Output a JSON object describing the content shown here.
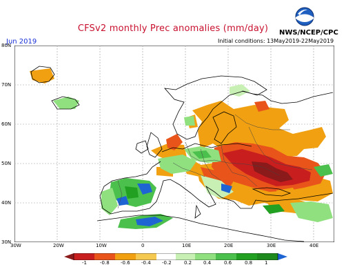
{
  "header": {
    "title": "CFSv2 monthly Prec anomalies (mm/day)",
    "month": "Jun 2019",
    "agency": "NWS/NCEP/CPC",
    "initial_conditions": "Initial conditions: 13May2019-22May2019",
    "logo_text": "NOAA"
  },
  "axes": {
    "lat_labels": [
      "80N",
      "70N",
      "60N",
      "50N",
      "40N",
      "30N"
    ],
    "lon_labels": [
      "30W",
      "20W",
      "10W",
      "0",
      "10E",
      "20E",
      "30E",
      "40E"
    ]
  },
  "colorbar": {
    "labels": [
      "-1",
      "-0.8",
      "-0.6",
      "-0.4",
      "-0.2",
      "0.2",
      "0.4",
      "0.6",
      "0.8",
      "1"
    ],
    "colors": [
      "#8b1a1a",
      "#c81e1e",
      "#e8541a",
      "#f0a010",
      "#ffffff",
      "#c8f0b4",
      "#90e080",
      "#4cc04c",
      "#22a022",
      "#1e64d2"
    ]
  }
}
